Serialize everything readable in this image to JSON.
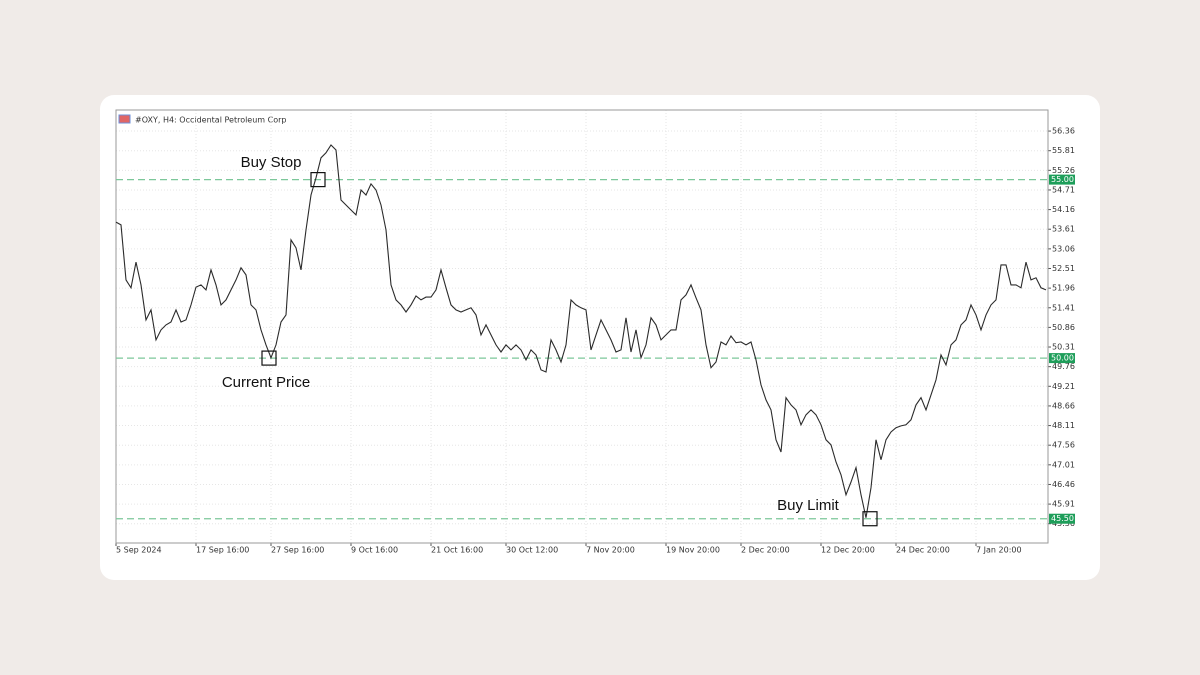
{
  "chart_data": {
    "type": "line",
    "title": "#OXY, H4:  Occidental Petroleum Corp",
    "series": [
      {
        "color": "#2b2b2b",
        "values": [
          53.81,
          53.73,
          52.19,
          51.97,
          52.69,
          52.05,
          51.07,
          51.35,
          50.51,
          50.79,
          50.93,
          51.01,
          51.35,
          51.01,
          51.07,
          51.49,
          51.99,
          52.05,
          51.91,
          52.47,
          52.05,
          51.49,
          51.63,
          51.91,
          52.19,
          52.53,
          52.33,
          51.49,
          51.35,
          50.79,
          50.37,
          50.01,
          50.37,
          51.01,
          51.21,
          53.31,
          53.09,
          52.47,
          53.59,
          54.57,
          55.05,
          55.61,
          55.75,
          55.97,
          55.83,
          54.43,
          54.29,
          54.15,
          54.01,
          54.71,
          54.57,
          54.88,
          54.71,
          54.29,
          53.59,
          52.05,
          51.63,
          51.49,
          51.29,
          51.49,
          51.74,
          51.63,
          51.71,
          51.71,
          51.91,
          52.47,
          51.97,
          51.49,
          51.35,
          51.29,
          51.35,
          51.41,
          51.21,
          50.65,
          50.93,
          50.65,
          50.37,
          50.17,
          50.37,
          50.23,
          50.37,
          50.23,
          49.95,
          50.23,
          50.09,
          49.67,
          49.61,
          50.51,
          50.23,
          49.89,
          50.37,
          51.63,
          51.49,
          51.41,
          51.35,
          50.23,
          50.65,
          51.07,
          50.79,
          50.51,
          50.17,
          50.23,
          51.13,
          50.17,
          50.79,
          50.01,
          50.37,
          51.13,
          50.93,
          50.51,
          50.65,
          50.79,
          50.79,
          51.63,
          51.77,
          52.05,
          51.69,
          51.35,
          50.37,
          49.73,
          49.89,
          50.45,
          50.37,
          50.62,
          50.43,
          50.45,
          50.37,
          50.45,
          49.95,
          49.25,
          48.83,
          48.55,
          47.71,
          47.37,
          48.89,
          48.69,
          48.55,
          48.13,
          48.41,
          48.55,
          48.41,
          48.13,
          47.71,
          47.57,
          47.09,
          46.73,
          46.17,
          46.53,
          46.93,
          46.17,
          45.53,
          46.37,
          47.71,
          47.15,
          47.71,
          47.93,
          48.05,
          48.1,
          48.13,
          48.27,
          48.69,
          48.89,
          48.55,
          48.97,
          49.39,
          50.09,
          49.81,
          50.37,
          50.51,
          50.93,
          51.07,
          51.49,
          51.21,
          50.79,
          51.21,
          51.49,
          51.63,
          52.61,
          52.61,
          52.05,
          52.05,
          51.97,
          52.69,
          52.19,
          52.25,
          51.97,
          51.91
        ]
      }
    ],
    "xlim": [
      0,
      186.4
    ],
    "xticks": [
      {
        "value": 0,
        "label": "5 Sep 2024"
      },
      {
        "value": 16,
        "label": "17 Sep 16:00"
      },
      {
        "value": 31,
        "label": "27 Sep 16:00"
      },
      {
        "value": 47,
        "label": "9 Oct 16:00"
      },
      {
        "value": 63,
        "label": "21 Oct 16:00"
      },
      {
        "value": 78,
        "label": "30 Oct 12:00"
      },
      {
        "value": 94,
        "label": "7 Nov 20:00"
      },
      {
        "value": 110,
        "label": "19 Nov 20:00"
      },
      {
        "value": 125,
        "label": "2 Dec 20:00"
      },
      {
        "value": 141,
        "label": "12 Dec 20:00"
      },
      {
        "value": 156,
        "label": "24 Dec 20:00"
      },
      {
        "value": 172,
        "label": "7 Jan 20:00"
      }
    ],
    "ylim": [
      44.82,
      56.95
    ],
    "yticks": [
      56.36,
      55.81,
      55.26,
      54.71,
      54.16,
      53.61,
      53.06,
      52.51,
      51.96,
      51.41,
      50.86,
      50.31,
      49.76,
      49.21,
      48.66,
      48.11,
      47.56,
      47.01,
      46.46,
      45.91,
      45.36
    ],
    "grid": true,
    "levels": [
      {
        "value": 55,
        "label": "55.00"
      },
      {
        "value": 50,
        "label": "50.00"
      },
      {
        "value": 45.5,
        "label": "45.50"
      }
    ],
    "level_color": "#1e9e5a",
    "annotations": [
      "Buy Stop",
      "Current Price",
      "Buy Limit"
    ]
  }
}
